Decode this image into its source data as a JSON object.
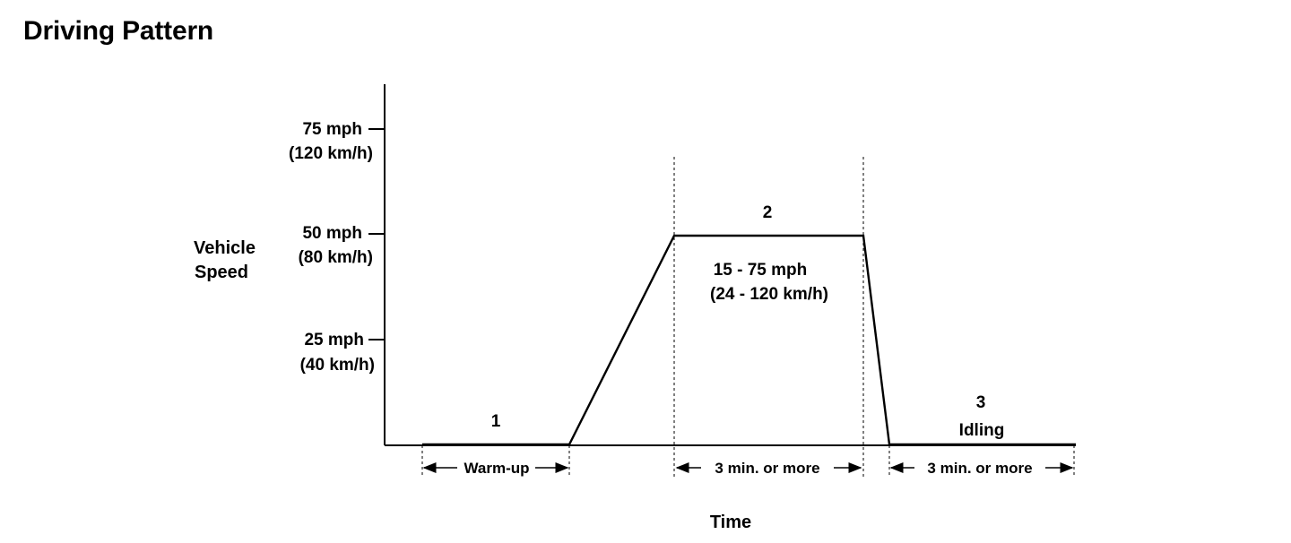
{
  "title": "Driving Pattern",
  "y_axis": {
    "label_line1": "Vehicle",
    "label_line2": "Speed",
    "ticks": [
      {
        "mph": "75 mph",
        "kmh": "(120 km/h)"
      },
      {
        "mph": "50 mph",
        "kmh": "(80 km/h)"
      },
      {
        "mph": "25 mph",
        "kmh": "(40 km/h)"
      }
    ]
  },
  "x_axis": {
    "label": "Time"
  },
  "phases": {
    "p1": {
      "number": "1",
      "span": "Warm-up"
    },
    "p2": {
      "number": "2",
      "range_mph": "15 - 75 mph",
      "range_kmh": "(24 - 120 km/h)",
      "span": "3 min. or  more"
    },
    "p3": {
      "number": "3",
      "name": "Idling",
      "span": "3 min. or  more"
    }
  }
}
